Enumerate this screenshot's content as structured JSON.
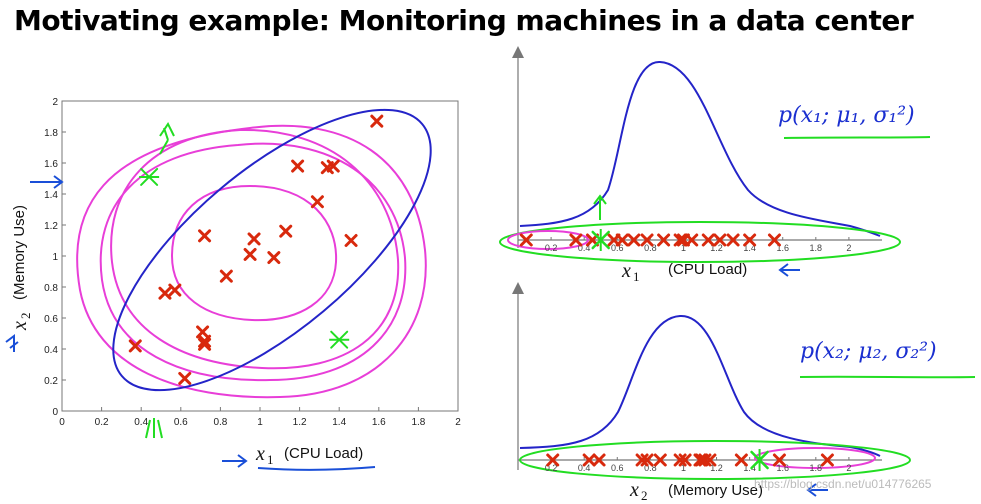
{
  "title": "Motivating example: Monitoring machines in a data center",
  "colors": {
    "point": "#d8290d",
    "anomaly": "#22dd22",
    "contour": "#e83ed8",
    "gaussian": "#2424c8",
    "ink": "#1a2fd0"
  },
  "chart_data": [
    {
      "type": "scatter",
      "x_axis": {
        "label_var": "x",
        "label_sub": "1",
        "label_text": "(CPU Load)",
        "range": [
          0,
          2
        ],
        "ticks": [
          "0",
          "0.2",
          "0.4",
          "0.6",
          "0.8",
          "1",
          "1.2",
          "1.4",
          "1.6",
          "1.8",
          "2"
        ]
      },
      "y_axis": {
        "label_var": "x",
        "label_sub": "2",
        "label_text": "(Memory Use)",
        "range": [
          0,
          2
        ],
        "ticks": [
          "0",
          "0.2",
          "0.4",
          "0.6",
          "0.8",
          "1",
          "1.2",
          "1.4",
          "1.6",
          "1.8",
          "2"
        ]
      },
      "points": [
        {
          "x": 1.59,
          "y": 1.87
        },
        {
          "x": 1.19,
          "y": 1.58
        },
        {
          "x": 1.34,
          "y": 1.57
        },
        {
          "x": 1.37,
          "y": 1.58
        },
        {
          "x": 1.29,
          "y": 1.35
        },
        {
          "x": 1.13,
          "y": 1.16
        },
        {
          "x": 0.72,
          "y": 1.13
        },
        {
          "x": 0.97,
          "y": 1.11
        },
        {
          "x": 1.46,
          "y": 1.1
        },
        {
          "x": 0.95,
          "y": 1.01
        },
        {
          "x": 1.07,
          "y": 0.99
        },
        {
          "x": 0.83,
          "y": 0.87
        },
        {
          "x": 0.52,
          "y": 0.76
        },
        {
          "x": 0.57,
          "y": 0.78
        },
        {
          "x": 0.71,
          "y": 0.51
        },
        {
          "x": 0.72,
          "y": 0.45
        },
        {
          "x": 0.72,
          "y": 0.43
        },
        {
          "x": 0.37,
          "y": 0.42
        },
        {
          "x": 0.62,
          "y": 0.21
        }
      ],
      "anomalies": [
        {
          "x": 0.44,
          "y": 1.51
        },
        {
          "x": 1.4,
          "y": 0.46
        }
      ]
    },
    {
      "type": "line",
      "x_axis": {
        "label_var": "x",
        "label_sub": "1",
        "label_text": "(CPU Load)",
        "range": [
          0,
          2.2
        ],
        "ticks": [
          "0.2",
          "0.4",
          "0.6",
          "0.8",
          "1",
          "1.2",
          "1.4",
          "1.6",
          "1.8",
          "2"
        ]
      },
      "curve": "gaussian",
      "points_x": [
        0.05,
        0.35,
        0.45,
        0.58,
        0.63,
        0.7,
        0.78,
        0.88,
        0.98,
        1.0,
        1.05,
        1.15,
        1.22,
        1.3,
        1.4,
        1.55
      ],
      "anomaly_x": 0.5,
      "annotation": "p(x₁; μ₁, σ₁²)"
    },
    {
      "type": "line",
      "x_axis": {
        "label_var": "x",
        "label_sub": "2",
        "label_text": "(Memory Use)",
        "range": [
          0,
          2.2
        ],
        "ticks": [
          "0.2",
          "0.4",
          "0.6",
          "0.8",
          "1",
          "1.2",
          "1.4",
          "1.6",
          "1.8",
          "2"
        ]
      },
      "curve": "gaussian",
      "points_x": [
        0.21,
        0.43,
        0.49,
        0.75,
        0.78,
        0.86,
        0.98,
        1.01,
        1.1,
        1.11,
        1.13,
        1.16,
        1.35,
        1.58,
        1.87
      ],
      "anomaly_x": 1.46,
      "annotation": "p(x₂; μ₂, σ₂²)"
    }
  ],
  "watermark": "https://blog.csdn.net/u014776265"
}
